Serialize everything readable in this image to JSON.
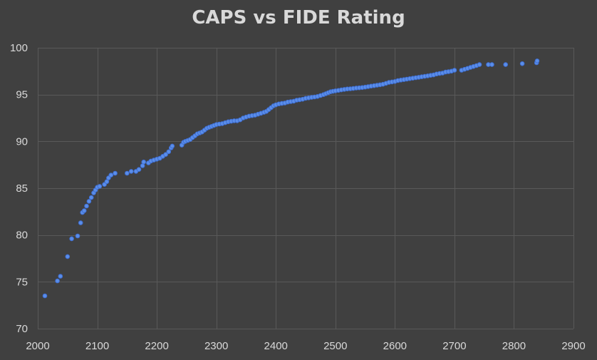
{
  "chart_data": {
    "type": "scatter",
    "title": "CAPS vs FIDE Rating",
    "xlabel": "",
    "ylabel": "",
    "xlim": [
      2000,
      2900
    ],
    "ylim": [
      70,
      100
    ],
    "x_ticks": [
      2000,
      2100,
      2200,
      2300,
      2400,
      2500,
      2600,
      2700,
      2800,
      2900
    ],
    "y_ticks": [
      70,
      75,
      80,
      85,
      90,
      95,
      100
    ],
    "grid": true,
    "legend": "none",
    "colors": {
      "background": "#404040",
      "text": "#d9d9d9",
      "grid": "#595959",
      "marker": "#5b8ee8",
      "marker_edge": "#3e6fd6"
    },
    "series": [
      {
        "points": [
          [
            2012,
            73.5
          ],
          [
            2033,
            75.1
          ],
          [
            2038,
            75.6
          ],
          [
            2050,
            77.7
          ],
          [
            2057,
            79.6
          ],
          [
            2067,
            79.9
          ],
          [
            2072,
            81.3
          ],
          [
            2075,
            82.4
          ],
          [
            2078,
            82.6
          ],
          [
            2082,
            83.1
          ],
          [
            2086,
            83.6
          ],
          [
            2090,
            84.0
          ],
          [
            2094,
            84.5
          ],
          [
            2097,
            84.8
          ],
          [
            2100,
            85.1
          ],
          [
            2104,
            85.2
          ],
          [
            2112,
            85.4
          ],
          [
            2116,
            85.7
          ],
          [
            2119,
            86.1
          ],
          [
            2123,
            86.4
          ],
          [
            2130,
            86.6
          ],
          [
            2150,
            86.6
          ],
          [
            2157,
            86.8
          ],
          [
            2165,
            86.8
          ],
          [
            2170,
            87.0
          ],
          [
            2176,
            87.4
          ],
          [
            2178,
            87.8
          ],
          [
            2186,
            87.7
          ],
          [
            2190,
            87.9
          ],
          [
            2195,
            88.0
          ],
          [
            2200,
            88.1
          ],
          [
            2205,
            88.2
          ],
          [
            2210,
            88.4
          ],
          [
            2215,
            88.6
          ],
          [
            2220,
            88.9
          ],
          [
            2224,
            89.3
          ],
          [
            2226,
            89.5
          ],
          [
            2242,
            89.6
          ],
          [
            2245,
            89.9
          ],
          [
            2248,
            90.0
          ],
          [
            2252,
            90.1
          ],
          [
            2256,
            90.2
          ],
          [
            2260,
            90.4
          ],
          [
            2264,
            90.6
          ],
          [
            2268,
            90.8
          ],
          [
            2272,
            90.9
          ],
          [
            2276,
            91.0
          ],
          [
            2280,
            91.2
          ],
          [
            2284,
            91.4
          ],
          [
            2288,
            91.5
          ],
          [
            2292,
            91.6
          ],
          [
            2296,
            91.7
          ],
          [
            2300,
            91.8
          ],
          [
            2305,
            91.85
          ],
          [
            2310,
            91.9
          ],
          [
            2315,
            92.0
          ],
          [
            2320,
            92.1
          ],
          [
            2325,
            92.15
          ],
          [
            2330,
            92.2
          ],
          [
            2335,
            92.2
          ],
          [
            2340,
            92.3
          ],
          [
            2345,
            92.5
          ],
          [
            2350,
            92.6
          ],
          [
            2355,
            92.7
          ],
          [
            2360,
            92.75
          ],
          [
            2365,
            92.8
          ],
          [
            2370,
            92.9
          ],
          [
            2375,
            93.0
          ],
          [
            2380,
            93.1
          ],
          [
            2384,
            93.2
          ],
          [
            2388,
            93.4
          ],
          [
            2392,
            93.6
          ],
          [
            2396,
            93.8
          ],
          [
            2400,
            93.9
          ],
          [
            2405,
            94.0
          ],
          [
            2410,
            94.05
          ],
          [
            2415,
            94.1
          ],
          [
            2420,
            94.2
          ],
          [
            2425,
            94.25
          ],
          [
            2430,
            94.3
          ],
          [
            2435,
            94.4
          ],
          [
            2440,
            94.45
          ],
          [
            2445,
            94.5
          ],
          [
            2450,
            94.6
          ],
          [
            2455,
            94.65
          ],
          [
            2460,
            94.7
          ],
          [
            2465,
            94.75
          ],
          [
            2470,
            94.8
          ],
          [
            2475,
            94.9
          ],
          [
            2480,
            95.0
          ],
          [
            2484,
            95.1
          ],
          [
            2488,
            95.2
          ],
          [
            2492,
            95.3
          ],
          [
            2496,
            95.35
          ],
          [
            2500,
            95.4
          ],
          [
            2505,
            95.45
          ],
          [
            2510,
            95.5
          ],
          [
            2515,
            95.55
          ],
          [
            2520,
            95.6
          ],
          [
            2525,
            95.62
          ],
          [
            2530,
            95.65
          ],
          [
            2535,
            95.7
          ],
          [
            2540,
            95.72
          ],
          [
            2545,
            95.75
          ],
          [
            2550,
            95.8
          ],
          [
            2555,
            95.85
          ],
          [
            2560,
            95.9
          ],
          [
            2565,
            95.95
          ],
          [
            2570,
            96.0
          ],
          [
            2575,
            96.05
          ],
          [
            2580,
            96.1
          ],
          [
            2585,
            96.2
          ],
          [
            2590,
            96.3
          ],
          [
            2595,
            96.35
          ],
          [
            2600,
            96.4
          ],
          [
            2605,
            96.5
          ],
          [
            2610,
            96.55
          ],
          [
            2615,
            96.6
          ],
          [
            2620,
            96.65
          ],
          [
            2625,
            96.7
          ],
          [
            2630,
            96.75
          ],
          [
            2635,
            96.8
          ],
          [
            2640,
            96.85
          ],
          [
            2645,
            96.9
          ],
          [
            2650,
            96.95
          ],
          [
            2655,
            97.0
          ],
          [
            2660,
            97.05
          ],
          [
            2665,
            97.1
          ],
          [
            2670,
            97.2
          ],
          [
            2675,
            97.25
          ],
          [
            2680,
            97.3
          ],
          [
            2685,
            97.4
          ],
          [
            2690,
            97.45
          ],
          [
            2695,
            97.5
          ],
          [
            2700,
            97.6
          ],
          [
            2712,
            97.6
          ],
          [
            2717,
            97.7
          ],
          [
            2722,
            97.8
          ],
          [
            2727,
            97.9
          ],
          [
            2732,
            98.0
          ],
          [
            2737,
            98.1
          ],
          [
            2742,
            98.2
          ],
          [
            2757,
            98.2
          ],
          [
            2763,
            98.2
          ],
          [
            2786,
            98.2
          ],
          [
            2814,
            98.3
          ],
          [
            2838,
            98.4
          ],
          [
            2839,
            98.6
          ]
        ]
      }
    ]
  }
}
